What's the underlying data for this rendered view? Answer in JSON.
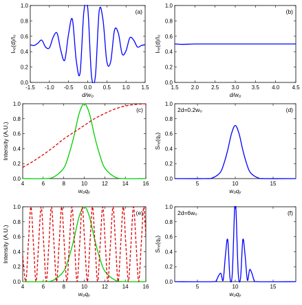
{
  "chart_data": [
    {
      "panel": "(a)",
      "type": "line",
      "xlabel": "d/w₀",
      "ylabel": "Iₙₑ(d)/I₀",
      "xlim": [
        -1.5,
        1.5
      ],
      "ylim": [
        0,
        1.0
      ],
      "xticks": [
        -1.5,
        -1.0,
        -0.5,
        0.0,
        0.5,
        1.0,
        1.5
      ],
      "xtick_labels": [
        "-1.5",
        "-1.0",
        "-0.5",
        "0.0",
        "0.5",
        "1.0",
        "1.5"
      ],
      "yticks": [
        0,
        0.2,
        0.4,
        0.6,
        0.8,
        1.0
      ],
      "ytick_labels": [
        "0.0",
        "0.2",
        "0.4",
        "0.6",
        "0.8",
        "1.0"
      ],
      "series": [
        {
          "color": "#0000ff",
          "style": "solid",
          "x": [
            -1.5,
            -1.4,
            -1.3,
            -1.2,
            -1.1,
            -1.0,
            -0.9,
            -0.8,
            -0.7,
            -0.6,
            -0.5,
            -0.4,
            -0.3,
            -0.2,
            -0.1,
            0.0,
            0.1,
            0.2,
            0.3,
            0.4,
            0.5,
            0.6,
            0.7,
            0.8,
            0.9,
            1.0,
            1.1,
            1.2,
            1.3,
            1.4,
            1.5
          ],
          "y": [
            0.49,
            0.48,
            0.51,
            0.55,
            0.46,
            0.45,
            0.59,
            0.64,
            0.41,
            0.29,
            0.63,
            0.82,
            0.29,
            0.12,
            0.92,
            0.97,
            0.08,
            0.08,
            0.93,
            0.81,
            0.27,
            0.27,
            0.68,
            0.64,
            0.37,
            0.41,
            0.58,
            0.55,
            0.46,
            0.48,
            0.49
          ]
        }
      ]
    },
    {
      "panel": "(b)",
      "type": "line",
      "xlabel": "d/w₀",
      "ylabel": "Iₙₑ(d)/I₀",
      "xlim": [
        1.5,
        4.5
      ],
      "ylim": [
        0,
        1.0
      ],
      "xticks": [
        1.5,
        2.0,
        2.5,
        3.0,
        3.5,
        4.0,
        4.5
      ],
      "xtick_labels": [
        "1.5",
        "2.0",
        "2.5",
        "3.0",
        "3.5",
        "4.0",
        "4.5"
      ],
      "yticks": [
        0,
        0.2,
        0.4,
        0.6,
        0.8,
        1.0
      ],
      "ytick_labels": [
        "0.0",
        "0.2",
        "0.4",
        "0.6",
        "0.8",
        "1.0"
      ],
      "series": [
        {
          "color": "#0000ff",
          "style": "solid",
          "x": [
            1.5,
            1.7,
            2.0,
            2.5,
            3.0,
            3.5,
            4.0,
            4.5
          ],
          "y": [
            0.5,
            0.495,
            0.5,
            0.5,
            0.5,
            0.5,
            0.5,
            0.5
          ]
        }
      ]
    },
    {
      "panel": "(c)",
      "type": "line",
      "xlabel": "w₀qᵧ",
      "ylabel": "Intensity (A.U.)",
      "xlim": [
        4,
        16
      ],
      "ylim": [
        0,
        1.0
      ],
      "xticks": [
        4,
        6,
        8,
        10,
        12,
        14,
        16
      ],
      "xtick_labels": [
        "4",
        "6",
        "8",
        "10",
        "12",
        "14",
        "16"
      ],
      "yticks": [
        0,
        0.2,
        0.4,
        0.6,
        0.8,
        1.0
      ],
      "ytick_labels": [
        "0.0",
        "0.2",
        "0.4",
        "0.6",
        "0.8",
        "1.0"
      ],
      "series": [
        {
          "color": "#00cc00",
          "style": "solid",
          "x": [
            4,
            6,
            7,
            8,
            8.5,
            9,
            9.5,
            10,
            10.5,
            11,
            11.5,
            12,
            13,
            14,
            16
          ],
          "y": [
            0,
            0.0,
            0.02,
            0.14,
            0.32,
            0.57,
            0.87,
            1.0,
            0.87,
            0.57,
            0.32,
            0.14,
            0.02,
            0.0,
            0
          ]
        },
        {
          "color": "#dd0000",
          "style": "dashed",
          "x": [
            4,
            5,
            6,
            7,
            8,
            9,
            10,
            11,
            12,
            13,
            14,
            15,
            16
          ],
          "y": [
            0.15,
            0.23,
            0.32,
            0.42,
            0.53,
            0.62,
            0.71,
            0.8,
            0.87,
            0.93,
            0.97,
            0.99,
            1.0
          ]
        }
      ]
    },
    {
      "panel": "(d)",
      "type": "line",
      "xlabel": "w₀qᵧ",
      "ylabel": "Sₙₑ(qᵧ)",
      "annotation": "2d=0.2w₀",
      "xlim": [
        2,
        18
      ],
      "ylim": [
        0,
        1.0
      ],
      "xticks": [
        5,
        10,
        15
      ],
      "xtick_labels": [
        "5",
        "10",
        "15"
      ],
      "yticks": [
        0,
        0.2,
        0.4,
        0.6,
        0.8,
        1.0
      ],
      "ytick_labels": [
        "0.0",
        "0.2",
        "0.4",
        "0.6",
        "0.8",
        "1.0"
      ],
      "series": [
        {
          "color": "#0000ff",
          "style": "solid",
          "x": [
            2,
            6,
            7,
            8,
            8.5,
            9,
            9.5,
            10,
            10.5,
            11,
            11.5,
            12,
            13,
            14,
            18
          ],
          "y": [
            0,
            0.0,
            0.01,
            0.08,
            0.2,
            0.38,
            0.6,
            0.71,
            0.6,
            0.38,
            0.2,
            0.08,
            0.01,
            0.0,
            0
          ]
        }
      ]
    },
    {
      "panel": "(e)",
      "type": "line",
      "xlabel": "w₀qᵧ",
      "ylabel": "Intensity (A.U.)",
      "xlim": [
        4,
        16
      ],
      "ylim": [
        0,
        1.0
      ],
      "xticks": [
        4,
        6,
        8,
        10,
        12,
        14,
        16
      ],
      "xtick_labels": [
        "4",
        "6",
        "8",
        "10",
        "12",
        "14",
        "16"
      ],
      "yticks": [
        0,
        0.2,
        0.4,
        0.6,
        0.8,
        1.0
      ],
      "ytick_labels": [
        "0.0",
        "0.2",
        "0.4",
        "0.6",
        "0.8",
        "1.0"
      ],
      "series": [
        {
          "color": "#00cc00",
          "style": "solid",
          "x": [
            4,
            6,
            7,
            8,
            8.5,
            9,
            9.5,
            10,
            10.5,
            11,
            11.5,
            12,
            13,
            14,
            16
          ],
          "y": [
            0,
            0.0,
            0.02,
            0.14,
            0.32,
            0.57,
            0.87,
            1.0,
            0.87,
            0.57,
            0.32,
            0.14,
            0.02,
            0.0,
            0
          ]
        },
        {
          "color": "#dd0000",
          "style": "dashed",
          "x": [
            4,
            4.3,
            4.55,
            4.8,
            5.05,
            5.3,
            5.55,
            5.8,
            6.05,
            6.3,
            6.55,
            6.8,
            7.05,
            7.3,
            7.55,
            7.8,
            8.05,
            8.3,
            8.55,
            8.8,
            9.05,
            9.3,
            9.55,
            9.8,
            10.05,
            10.3,
            10.55,
            10.8,
            11.05,
            11.3,
            11.55,
            11.8,
            12.05,
            12.3,
            12.55,
            12.8,
            13.05,
            13.3,
            13.55,
            13.8,
            14.05,
            14.3,
            14.55,
            14.8,
            15.05,
            15.3,
            15.55,
            15.8,
            16
          ],
          "y": [
            0.35,
            0.0,
            0.5,
            1.0,
            0.5,
            0.0,
            0.5,
            1.0,
            0.5,
            0.0,
            0.5,
            1.0,
            0.5,
            0.0,
            0.5,
            1.0,
            0.5,
            0.0,
            0.5,
            1.0,
            0.5,
            0.0,
            0.5,
            1.0,
            0.5,
            0.0,
            0.5,
            1.0,
            0.5,
            0.0,
            0.5,
            1.0,
            0.5,
            0.0,
            0.5,
            1.0,
            0.5,
            0.0,
            0.5,
            1.0,
            0.5,
            0.0,
            0.5,
            1.0,
            0.5,
            0.0,
            0.5,
            1.0,
            0.6
          ]
        }
      ]
    },
    {
      "panel": "(f)",
      "type": "line",
      "xlabel": "w₀qᵧ",
      "ylabel": "Sₙₑ(qᵧ)",
      "annotation": "2d=6w₀",
      "xlim": [
        2,
        18
      ],
      "ylim": [
        0,
        1.0
      ],
      "xticks": [
        5,
        10,
        15
      ],
      "xtick_labels": [
        "5",
        "10",
        "15"
      ],
      "yticks": [
        0,
        0.2,
        0.4,
        0.6,
        0.8,
        1.0
      ],
      "ytick_labels": [
        "0.0",
        "0.2",
        "0.4",
        "0.6",
        "0.8",
        "1.0"
      ],
      "series": [
        {
          "color": "#0000ff",
          "style": "solid",
          "x": [
            2,
            7,
            7.5,
            7.8,
            8.1,
            8.4,
            8.7,
            9.0,
            9.3,
            9.6,
            9.9,
            10.0,
            10.1,
            10.4,
            10.7,
            11.0,
            11.3,
            11.6,
            11.9,
            12.2,
            12.5,
            13,
            18
          ],
          "y": [
            0,
            0.0,
            0.02,
            0.08,
            0.11,
            0.02,
            0.35,
            0.56,
            0.05,
            0.1,
            0.95,
            1.0,
            0.95,
            0.1,
            0.05,
            0.56,
            0.35,
            0.02,
            0.16,
            0.11,
            0.02,
            0.0,
            0
          ]
        }
      ]
    }
  ]
}
